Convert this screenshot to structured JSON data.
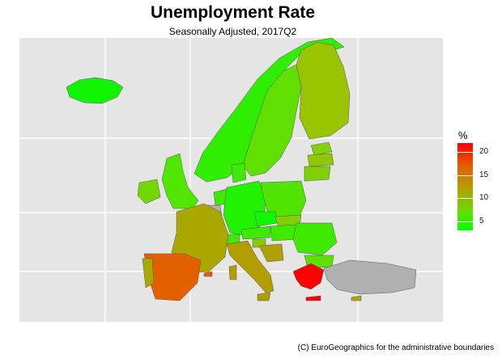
{
  "title": "Unemployment Rate",
  "subtitle": "Seasonally Adjusted, 2017Q2",
  "credit": "(C) EuroGeographics for the administrative boundaries",
  "legend": {
    "title": "%",
    "ticks": [
      20,
      15,
      10,
      5
    ],
    "min": 3,
    "max": 22,
    "colors": [
      "#00ff00",
      "#5fe000",
      "#aaaa00",
      "#e55a00",
      "#ff0000"
    ]
  },
  "colors": {
    "panel_bg": "#e5e5e5",
    "grid": "#ffffff",
    "no_data": "#b0b0b0",
    "border": "#555555"
  }
}
